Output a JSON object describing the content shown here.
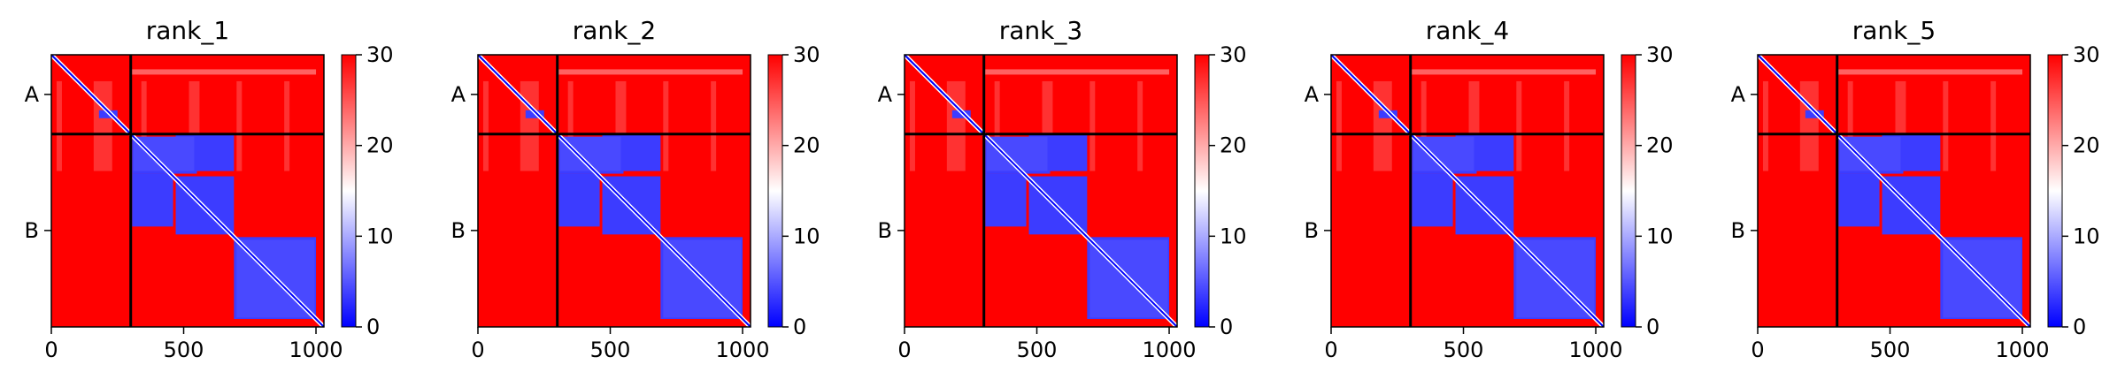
{
  "chart_data": [
    {
      "type": "heatmap",
      "title": "rank_1",
      "x_ticks": [
        "0",
        "500",
        "1000"
      ],
      "y_ticks": [
        "A",
        "B"
      ],
      "colorbar": {
        "ticks": [
          "0",
          "10",
          "20",
          "30"
        ],
        "range": [
          0,
          30
        ],
        "cmap": "bwr"
      },
      "xlim": [
        0,
        1030
      ],
      "chain_boundary": 300,
      "chains": [
        "A",
        "B"
      ]
    },
    {
      "type": "heatmap",
      "title": "rank_2",
      "x_ticks": [
        "0",
        "500",
        "1000"
      ],
      "y_ticks": [
        "A",
        "B"
      ],
      "colorbar": {
        "ticks": [
          "0",
          "10",
          "20",
          "30"
        ],
        "range": [
          0,
          30
        ],
        "cmap": "bwr"
      },
      "xlim": [
        0,
        1030
      ],
      "chain_boundary": 300,
      "chains": [
        "A",
        "B"
      ]
    },
    {
      "type": "heatmap",
      "title": "rank_3",
      "x_ticks": [
        "0",
        "500",
        "1000"
      ],
      "y_ticks": [
        "A",
        "B"
      ],
      "colorbar": {
        "ticks": [
          "0",
          "10",
          "20",
          "30"
        ],
        "range": [
          0,
          30
        ],
        "cmap": "bwr"
      },
      "xlim": [
        0,
        1030
      ],
      "chain_boundary": 300,
      "chains": [
        "A",
        "B"
      ]
    },
    {
      "type": "heatmap",
      "title": "rank_4",
      "x_ticks": [
        "0",
        "500",
        "1000"
      ],
      "y_ticks": [
        "A",
        "B"
      ],
      "colorbar": {
        "ticks": [
          "0",
          "10",
          "20",
          "30"
        ],
        "range": [
          0,
          30
        ],
        "cmap": "bwr"
      },
      "xlim": [
        0,
        1030
      ],
      "chain_boundary": 300,
      "chains": [
        "A",
        "B"
      ]
    },
    {
      "type": "heatmap",
      "title": "rank_5",
      "x_ticks": [
        "0",
        "500",
        "1000"
      ],
      "y_ticks": [
        "A",
        "B"
      ],
      "colorbar": {
        "ticks": [
          "0",
          "10",
          "20",
          "30"
        ],
        "range": [
          0,
          30
        ],
        "cmap": "bwr"
      },
      "xlim": [
        0,
        1030
      ],
      "chain_boundary": 300,
      "chains": [
        "A",
        "B"
      ]
    }
  ]
}
